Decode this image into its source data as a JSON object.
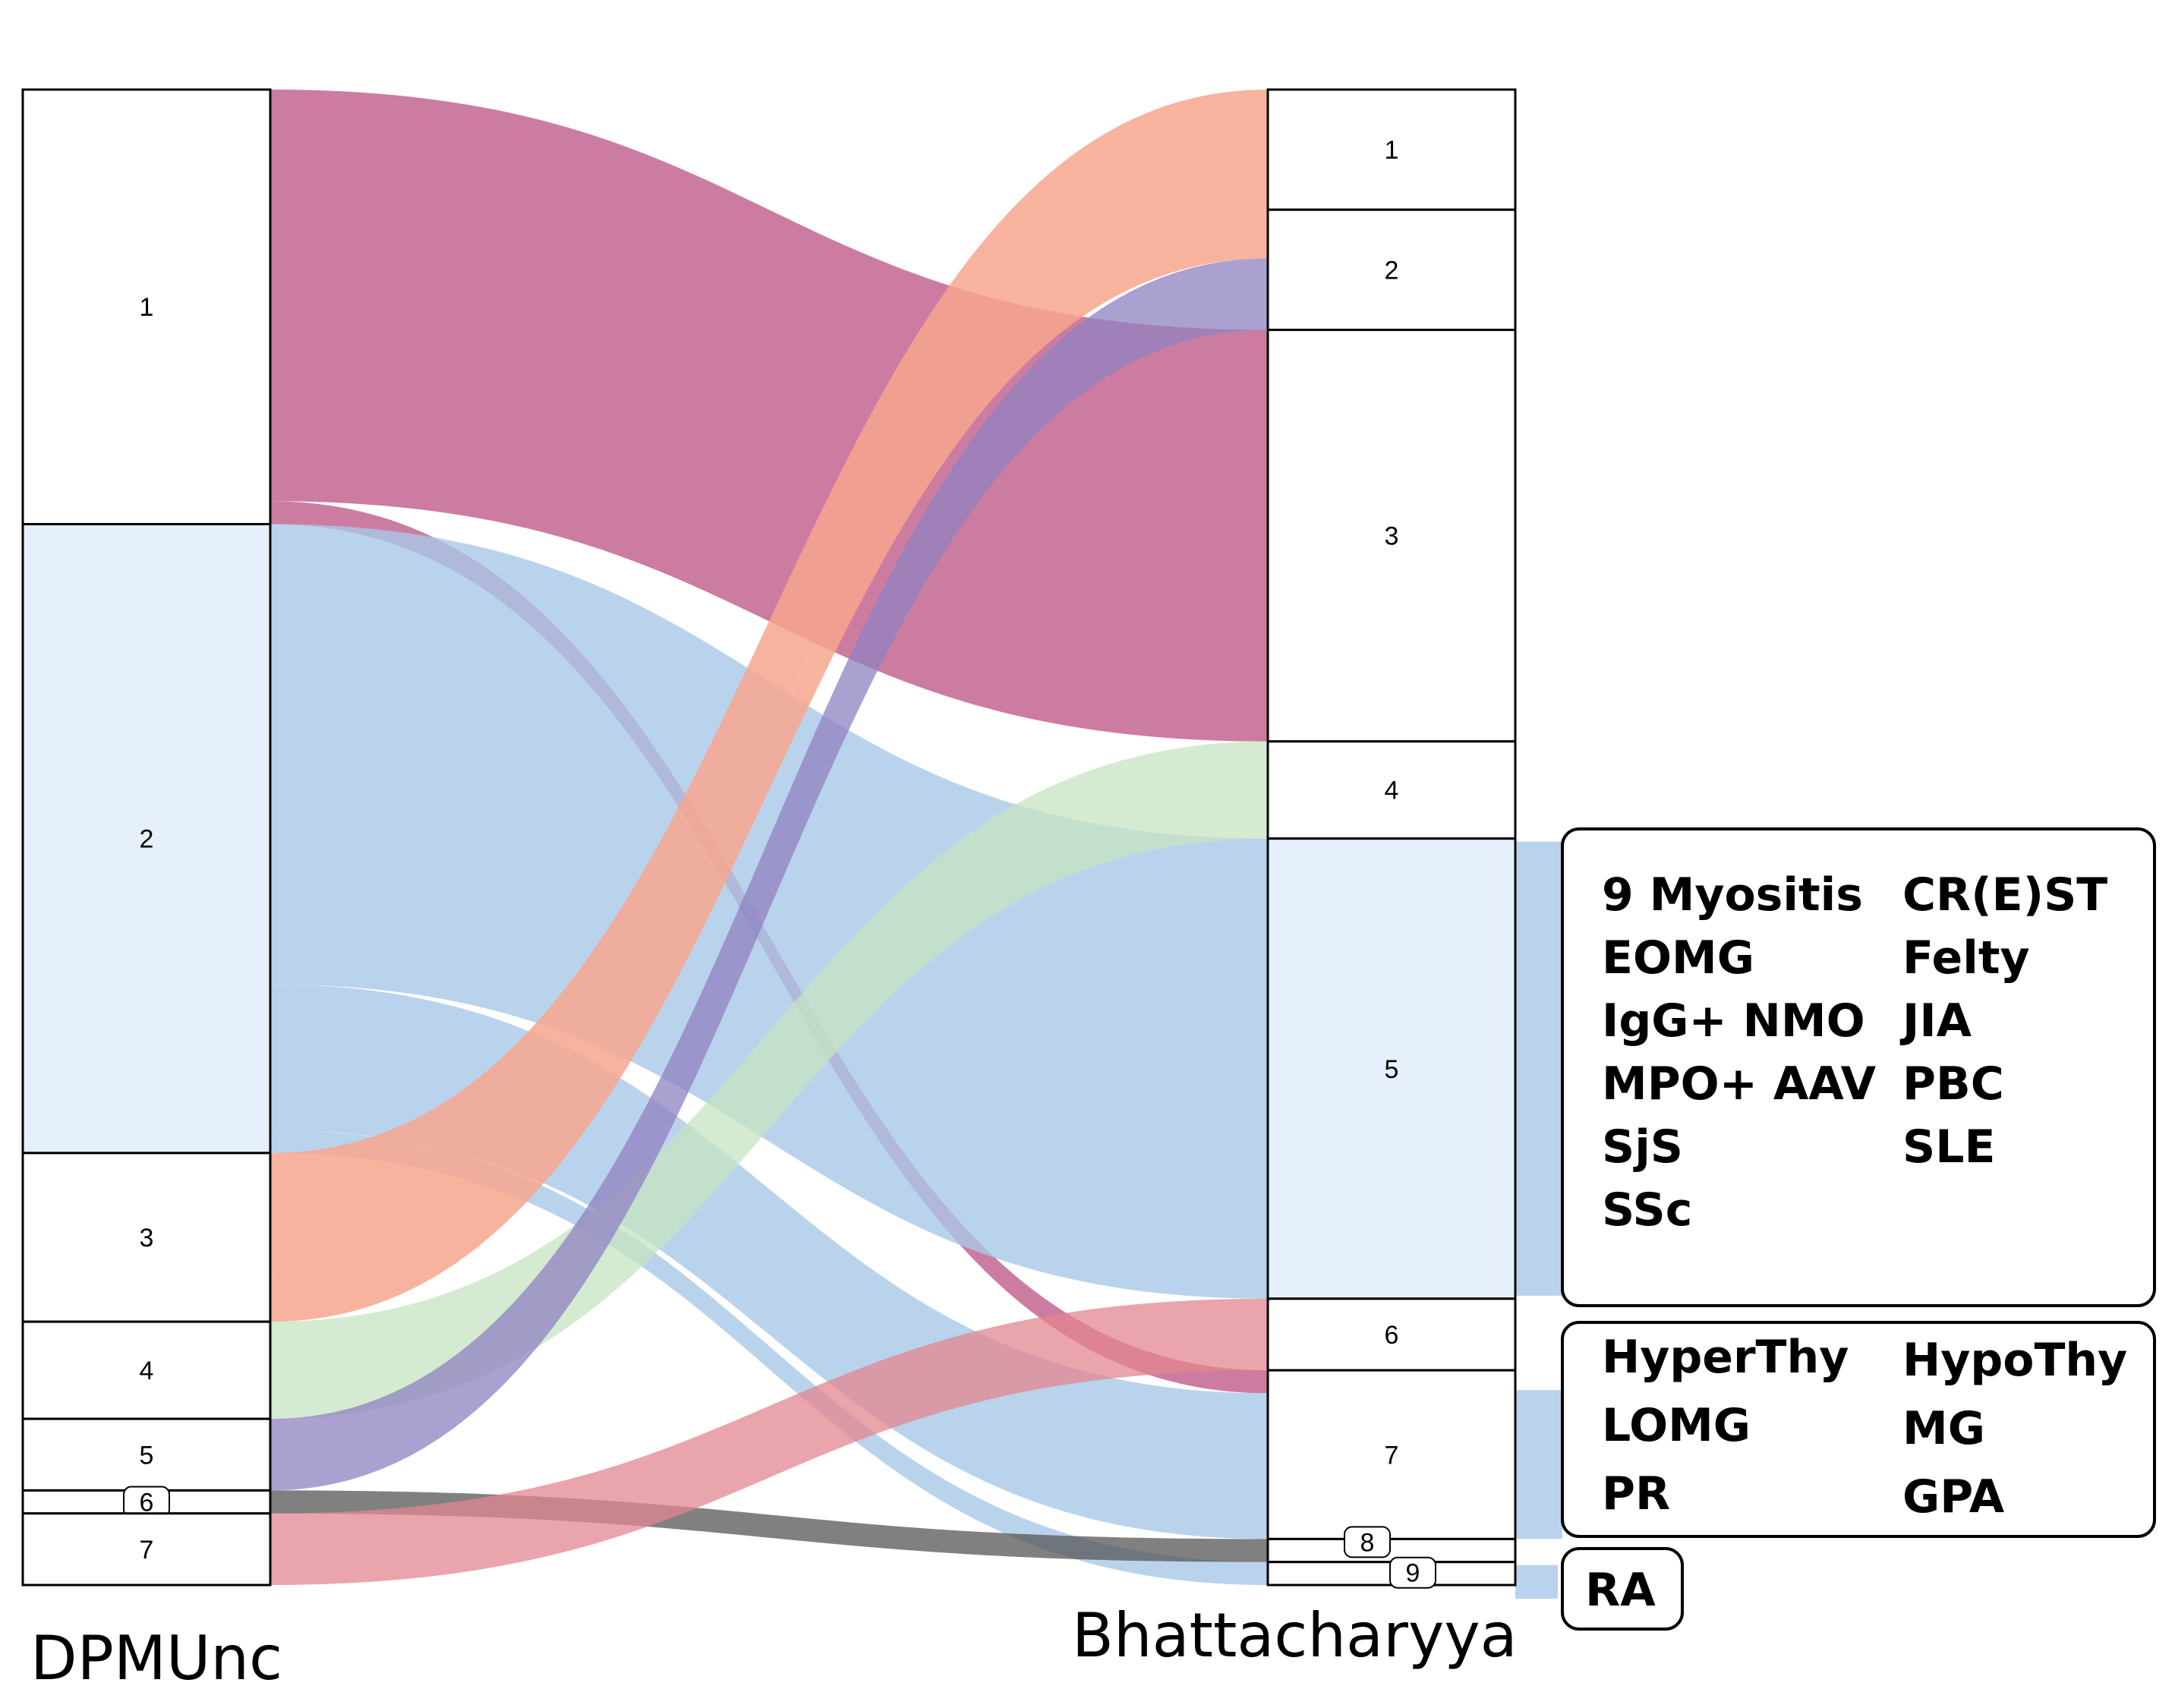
{
  "left_axis": {
    "title": "DPMUnc",
    "nodes": [
      {
        "id": "L1",
        "label": "1",
        "size": 85,
        "fill": "#ffffff"
      },
      {
        "id": "L2",
        "label": "2",
        "size": 123,
        "fill": "#e6f0fc"
      },
      {
        "id": "L3",
        "label": "3",
        "size": 33,
        "fill": "#ffffff"
      },
      {
        "id": "L4",
        "label": "4",
        "size": 19,
        "fill": "#ffffff"
      },
      {
        "id": "L5",
        "label": "5",
        "size": 14,
        "fill": "#ffffff"
      },
      {
        "id": "L6",
        "label": "6",
        "size": 4.5,
        "fill": "#ffffff",
        "boxed": true
      },
      {
        "id": "L7",
        "label": "7",
        "size": 14,
        "fill": "#ffffff"
      }
    ]
  },
  "right_axis": {
    "title": "Bhattacharyya",
    "nodes": [
      {
        "id": "R1",
        "label": "1",
        "size": 23.5,
        "fill": "#ffffff"
      },
      {
        "id": "R2",
        "label": "2",
        "size": 23.5,
        "fill": "#ffffff"
      },
      {
        "id": "R3",
        "label": "3",
        "size": 80.5,
        "fill": "#ffffff"
      },
      {
        "id": "R4",
        "label": "4",
        "size": 19,
        "fill": "#ffffff"
      },
      {
        "id": "R5",
        "label": "5",
        "size": 90,
        "fill": "#e6f0fc"
      },
      {
        "id": "R6",
        "label": "6",
        "size": 14,
        "fill": "#ffffff"
      },
      {
        "id": "R7",
        "label": "7",
        "size": 33,
        "fill": "#ffffff"
      },
      {
        "id": "R8",
        "label": "8",
        "size": 4.5,
        "fill": "#ffffff",
        "boxed": true
      },
      {
        "id": "R9",
        "label": "9",
        "size": 4.5,
        "fill": "#ffffff",
        "boxed": true
      }
    ]
  },
  "flows": [
    {
      "from": "L1",
      "to": "R3",
      "value": 80.5,
      "color": "#c46590",
      "opacity": 0.85
    },
    {
      "from": "L1",
      "to": "R7",
      "value": 4.5,
      "color": "#c46590",
      "opacity": 0.85
    },
    {
      "from": "L2",
      "to": "R5",
      "value": 90,
      "color": "#a9c8e8",
      "opacity": 0.8
    },
    {
      "from": "L2",
      "to": "R7",
      "value": 28.5,
      "color": "#a9c8e8",
      "opacity": 0.8
    },
    {
      "from": "L2",
      "to": "R9",
      "value": 4.5,
      "color": "#a9c8e8",
      "opacity": 0.8
    },
    {
      "from": "L3",
      "to": "R1",
      "value": 23.5,
      "color": "#f7a68e",
      "opacity": 0.85
    },
    {
      "from": "L3",
      "to": "R2",
      "value": 9.5,
      "color": "#f7a68e",
      "opacity": 0.85
    },
    {
      "from": "L4",
      "to": "R4",
      "value": 19,
      "color": "#c6e4c2",
      "opacity": 0.75
    },
    {
      "from": "L5",
      "to": "R2",
      "value": 14,
      "color": "#8f82c0",
      "opacity": 0.75
    },
    {
      "from": "L6",
      "to": "R8",
      "value": 4.5,
      "color": "#555555",
      "opacity": 0.75
    },
    {
      "from": "L7",
      "to": "R6",
      "value": 14,
      "color": "#e3858f",
      "opacity": 0.75
    }
  ],
  "side_flows": [
    {
      "from": "R5",
      "to": "panel-1",
      "color": "#a9c8e8"
    },
    {
      "from": "R7",
      "to": "panel-2",
      "color": "#a9c8e8"
    },
    {
      "from": "R9",
      "to": "panel-3",
      "color": "#a9c8e8"
    }
  ],
  "panels": [
    {
      "id": "panel-1",
      "col1": [
        "9 Myositis",
        "EOMG",
        "IgG+ NMO",
        "MPO+ AAV",
        "SjS",
        "SSc"
      ],
      "col2": [
        "CR(E)ST",
        "Felty",
        "JIA",
        "PBC",
        "SLE"
      ]
    },
    {
      "id": "panel-2",
      "col1": [
        "HyperThy",
        "LOMG",
        "PR"
      ],
      "col2": [
        "HypoThy",
        "MG",
        "GPA"
      ]
    },
    {
      "id": "panel-3",
      "col1": [
        "RA"
      ],
      "col2": []
    }
  ]
}
